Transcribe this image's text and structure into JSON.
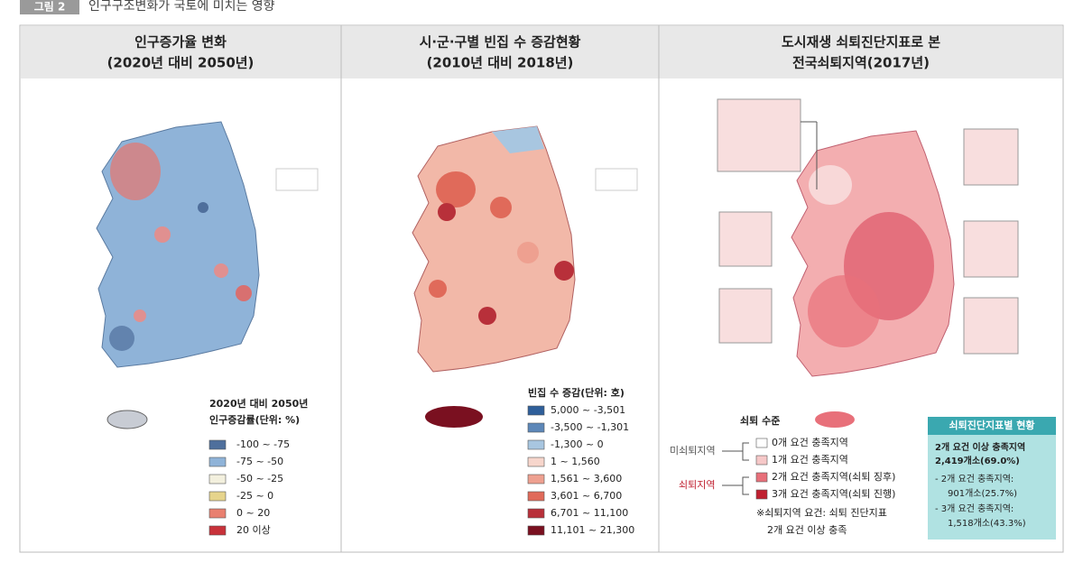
{
  "header": {
    "figure_label": "그림 2",
    "title": "인구구조변화가 국토에 미치는 영향"
  },
  "panels": [
    {
      "title": [
        "인구증가율 변화",
        "(2020년 대비 2050년)"
      ],
      "legend": {
        "title": [
          "2020년 대비 2050년",
          "인구증감률(단위: %)"
        ],
        "items": [
          {
            "label": "-100 ~ -75",
            "color": "#4f6f9c"
          },
          {
            "label": "-75 ~ -50",
            "color": "#8fb3d8"
          },
          {
            "label": "-50 ~ -25",
            "color": "#f3f0de"
          },
          {
            "label": "-25 ~ 0",
            "color": "#e6d48c"
          },
          {
            "label": "0 ~ 20",
            "color": "#e98070"
          },
          {
            "label": "20 이상",
            "color": "#c8323a"
          }
        ]
      }
    },
    {
      "title": [
        "시·군·구별 빈집 수 증감현황",
        "(2010년 대비 2018년)"
      ],
      "legend": {
        "title": [
          "빈집 수 증감(단위: 호)"
        ],
        "items": [
          {
            "label": "5,000 ~ -3,501",
            "color": "#2f5f9a"
          },
          {
            "label": "-3,500 ~ -1,301",
            "color": "#5d87b8"
          },
          {
            "label": "-1,300 ~ 0",
            "color": "#a8c6e0"
          },
          {
            "label": "1 ~ 1,560",
            "color": "#f7d6cc"
          },
          {
            "label": "1,561 ~ 3,600",
            "color": "#eea090"
          },
          {
            "label": "3,601 ~ 6,700",
            "color": "#e06a5a"
          },
          {
            "label": "6,701 ~ 11,100",
            "color": "#b8303a"
          },
          {
            "label": "11,101 ~ 21,300",
            "color": "#7a1020"
          }
        ]
      }
    },
    {
      "title": [
        "도시재생 쇠퇴진단지표로 본",
        "전국쇠퇴지역(2017년)"
      ],
      "legend": {
        "title": [
          "쇠퇴 수준"
        ],
        "groups": [
          "미쇠퇴지역",
          "쇠퇴지역"
        ],
        "items": [
          {
            "label": "0개 요건 충족지역",
            "color": "#ffffff"
          },
          {
            "label": "1개 요건 충족지역",
            "color": "#f6c8c8"
          },
          {
            "label": "2개 요건 충족지역(쇠퇴 징후)",
            "color": "#e8707a"
          },
          {
            "label": "3개 요건 충족지역(쇠퇴 진행)",
            "color": "#c02030"
          }
        ],
        "note": [
          "※쇠퇴지역 요건: 쇠퇴 진단지표",
          "2개 요건 이상 충족"
        ]
      },
      "info_box": {
        "title": "쇠퇴진단지표별 현황",
        "lines": [
          "2개 요건 이상 충족지역",
          "2,419개소(69.0%)",
          "- 2개 요건 충족지역:",
          "901개소(25.7%)",
          "- 3개 요건 충족지역:",
          "1,518개소(43.3%)"
        ]
      }
    }
  ]
}
